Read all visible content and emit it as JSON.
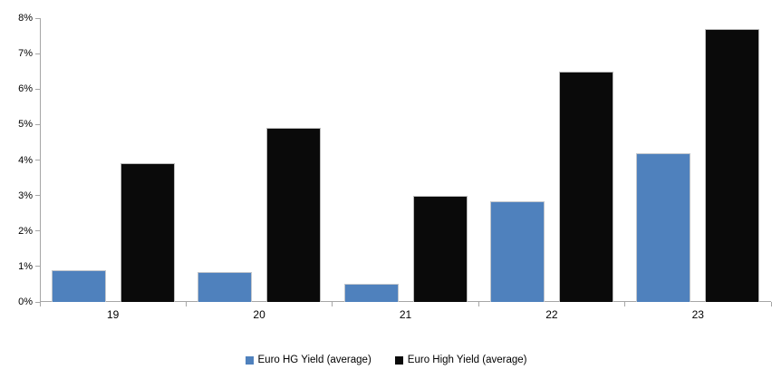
{
  "chart_data": {
    "type": "bar",
    "title": "",
    "xlabel": "",
    "ylabel": "",
    "categories": [
      "19",
      "20",
      "21",
      "22",
      "23"
    ],
    "series": [
      {
        "name": "Euro HG Yield (average)",
        "color": "#4f81bd",
        "values": [
          0.9,
          0.85,
          0.5,
          2.85,
          4.2
        ]
      },
      {
        "name": "Euro High Yield (average)",
        "color": "#0a0a0a",
        "values": [
          3.9,
          4.9,
          3.0,
          6.5,
          7.7
        ]
      }
    ],
    "ylim": [
      0,
      8
    ],
    "ytick_labels": [
      "0%",
      "1%",
      "2%",
      "3%",
      "4%",
      "5%",
      "6%",
      "7%",
      "8%"
    ],
    "grid": false,
    "legend_position": "bottom",
    "axis_color": "#a6a6a6",
    "background_color": "#ffffff"
  }
}
